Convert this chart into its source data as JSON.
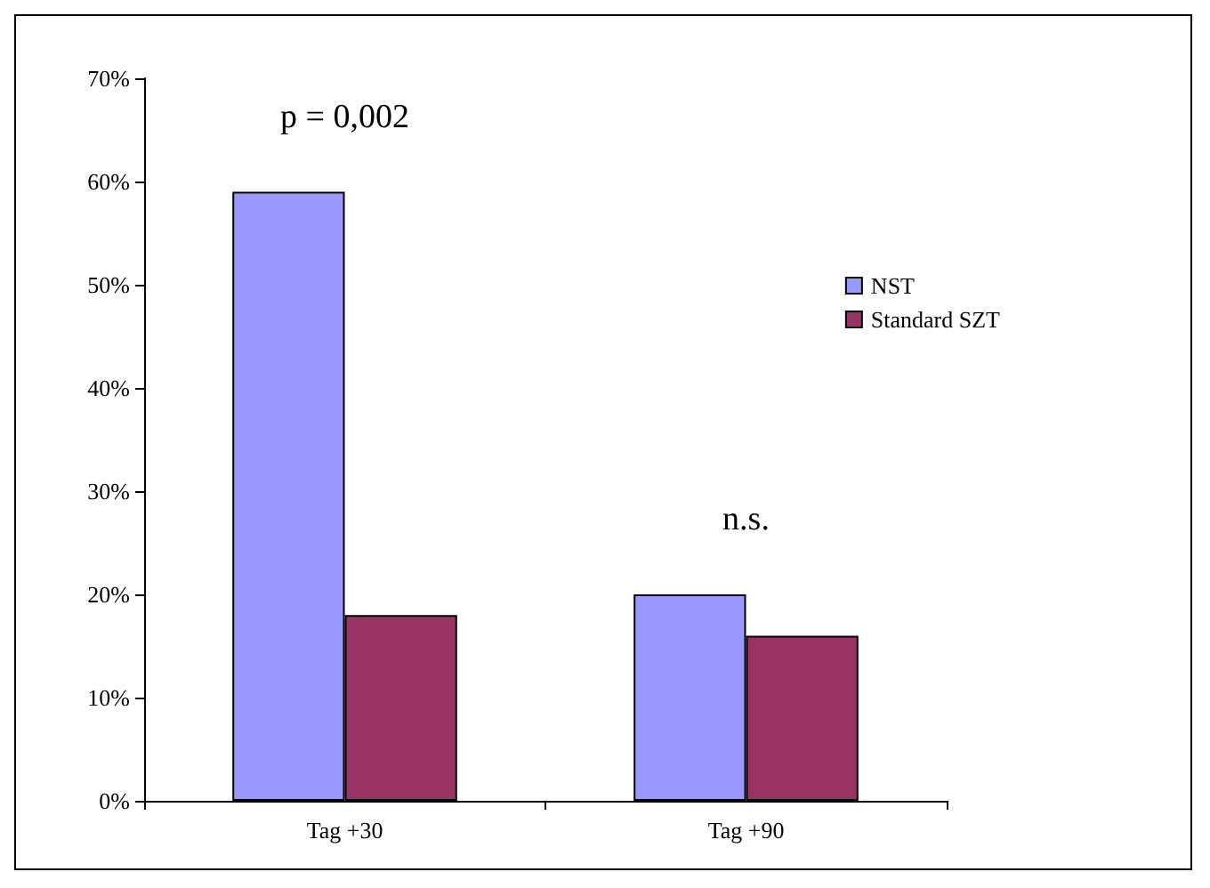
{
  "chart_data": {
    "type": "bar",
    "categories": [
      "Tag +30",
      "Tag +90"
    ],
    "series": [
      {
        "name": "NST",
        "color": "#9999ff",
        "values": [
          59,
          20
        ]
      },
      {
        "name": "Standard SZT",
        "color": "#993366",
        "values": [
          18,
          16
        ]
      }
    ],
    "ylim": [
      0,
      70
    ],
    "yticks": [
      {
        "value": 0,
        "label": "0%"
      },
      {
        "value": 10,
        "label": "10%"
      },
      {
        "value": 20,
        "label": "20%"
      },
      {
        "value": 30,
        "label": "30%"
      },
      {
        "value": 40,
        "label": "40%"
      },
      {
        "value": 50,
        "label": "50%"
      },
      {
        "value": 60,
        "label": "60%"
      },
      {
        "value": 70,
        "label": "70%"
      }
    ],
    "annotations": [
      "p = 0,002",
      "n.s."
    ],
    "grid": false,
    "legend": "right"
  }
}
